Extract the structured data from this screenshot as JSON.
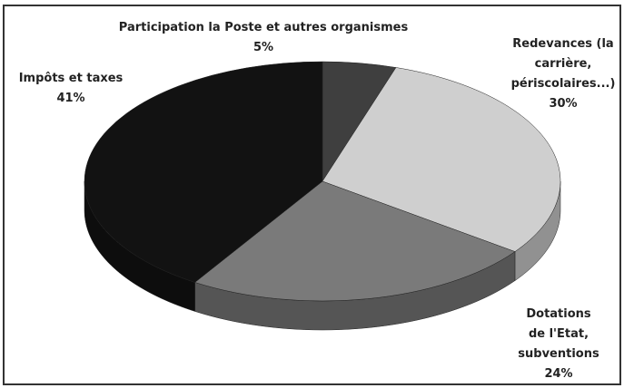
{
  "chart_data": {
    "type": "pie",
    "categories": [
      "Participation la Poste et autres organismes",
      "Redevances (la carrière, périscolaires...)",
      "Dotations de l'Etat, subventions",
      "Impôts et taxes"
    ],
    "values": [
      5,
      30,
      24,
      41
    ],
    "value_labels": [
      "5%",
      "30%",
      "24%",
      "41%"
    ],
    "colors": [
      "#3f3f3f",
      "#cfcfcf",
      "#7a7a7a",
      "#121212"
    ]
  }
}
